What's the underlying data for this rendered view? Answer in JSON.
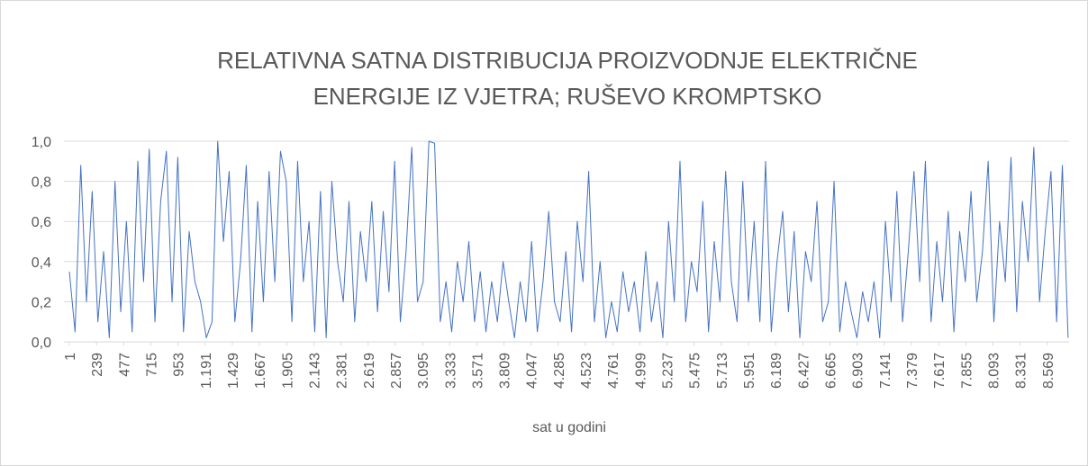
{
  "chart_data": {
    "type": "line",
    "title": [
      "RELATIVNA SATNA DISTRIBUCIJA PROIZVODNJE ELEKTRIČNE",
      "ENERGIJE IZ VJETRA; RUŠEVO KROMPTSKO"
    ],
    "x_label": "sat u godini",
    "color": "#4472c4",
    "grid": true,
    "xlim": [
      1,
      8760
    ],
    "xticks": [
      1,
      239,
      477,
      715,
      953,
      {
        "value": 1191,
        "label": "1.191"
      },
      {
        "value": 1429,
        "label": "1.429"
      },
      {
        "value": 1667,
        "label": "1.667"
      },
      {
        "value": 1905,
        "label": "1.905"
      },
      {
        "value": 2143,
        "label": "2.143"
      },
      {
        "value": 2381,
        "label": "2.381"
      },
      {
        "value": 2619,
        "label": "2.619"
      },
      {
        "value": 2857,
        "label": "2.857"
      },
      {
        "value": 3095,
        "label": "3.095"
      },
      {
        "value": 3333,
        "label": "3.333"
      },
      {
        "value": 3571,
        "label": "3.571"
      },
      {
        "value": 3809,
        "label": "3.809"
      },
      {
        "value": 4047,
        "label": "4.047"
      },
      {
        "value": 4285,
        "label": "4.285"
      },
      {
        "value": 4523,
        "label": "4.523"
      },
      {
        "value": 4761,
        "label": "4.761"
      },
      {
        "value": 4999,
        "label": "4.999"
      },
      {
        "value": 5237,
        "label": "5.237"
      },
      {
        "value": 5475,
        "label": "5.475"
      },
      {
        "value": 5713,
        "label": "5.713"
      },
      {
        "value": 5951,
        "label": "5.951"
      },
      {
        "value": 6189,
        "label": "6.189"
      },
      {
        "value": 6427,
        "label": "6.427"
      },
      {
        "value": 6665,
        "label": "6.665"
      },
      {
        "value": 6903,
        "label": "6.903"
      },
      {
        "value": 7141,
        "label": "7.141"
      },
      {
        "value": 7379,
        "label": "7.379"
      },
      {
        "value": 7617,
        "label": "7.617"
      },
      {
        "value": 7855,
        "label": "7.855"
      },
      {
        "value": 8093,
        "label": "8.093"
      },
      {
        "value": 8331,
        "label": "8.331"
      },
      {
        "value": 8569,
        "label": "8.569"
      }
    ],
    "ylim": [
      0,
      1
    ],
    "yticks": [
      {
        "value": 0,
        "label": "0,0"
      },
      {
        "value": 0.2,
        "label": "0,2"
      },
      {
        "value": 0.4,
        "label": "0,4"
      },
      {
        "value": 0.6,
        "label": "0,6"
      },
      {
        "value": 0.8,
        "label": "0,8"
      },
      {
        "value": 1,
        "label": "1,0"
      }
    ],
    "x": [
      1,
      51,
      101,
      151,
      201,
      251,
      301,
      351,
      401,
      451,
      501,
      551,
      601,
      651,
      701,
      751,
      801,
      851,
      901,
      951,
      1001,
      1051,
      1101,
      1151,
      1201,
      1251,
      1301,
      1351,
      1401,
      1451,
      1501,
      1551,
      1601,
      1651,
      1701,
      1751,
      1801,
      1851,
      1901,
      1951,
      2001,
      2051,
      2101,
      2151,
      2201,
      2251,
      2301,
      2351,
      2401,
      2451,
      2501,
      2551,
      2601,
      2651,
      2701,
      2751,
      2801,
      2851,
      2901,
      2951,
      3001,
      3051,
      3101,
      3151,
      3201,
      3251,
      3301,
      3351,
      3401,
      3451,
      3501,
      3551,
      3601,
      3651,
      3701,
      3751,
      3801,
      3851,
      3901,
      3951,
      4001,
      4051,
      4101,
      4151,
      4201,
      4251,
      4301,
      4351,
      4401,
      4451,
      4501,
      4551,
      4601,
      4651,
      4701,
      4751,
      4801,
      4851,
      4901,
      4951,
      5001,
      5051,
      5101,
      5151,
      5201,
      5251,
      5301,
      5351,
      5401,
      5451,
      5501,
      5551,
      5601,
      5651,
      5701,
      5751,
      5801,
      5851,
      5901,
      5951,
      6001,
      6051,
      6101,
      6151,
      6201,
      6251,
      6301,
      6351,
      6401,
      6451,
      6501,
      6551,
      6601,
      6651,
      6701,
      6751,
      6801,
      6851,
      6901,
      6951,
      7001,
      7051,
      7101,
      7151,
      7201,
      7251,
      7301,
      7351,
      7401,
      7451,
      7501,
      7551,
      7601,
      7651,
      7701,
      7751,
      7801,
      7851,
      7901,
      7951,
      8001,
      8051,
      8101,
      8151,
      8201,
      8251,
      8301,
      8351,
      8401,
      8451,
      8501,
      8551,
      8601,
      8651,
      8701,
      8751
    ],
    "values": [
      0.35,
      0.05,
      0.88,
      0.2,
      0.75,
      0.1,
      0.45,
      0.02,
      0.8,
      0.15,
      0.6,
      0.05,
      0.9,
      0.3,
      0.96,
      0.1,
      0.7,
      0.95,
      0.2,
      0.92,
      0.05,
      0.55,
      0.3,
      0.2,
      0.02,
      0.1,
      1.0,
      0.5,
      0.85,
      0.1,
      0.4,
      0.88,
      0.05,
      0.7,
      0.2,
      0.85,
      0.3,
      0.95,
      0.8,
      0.1,
      0.9,
      0.3,
      0.6,
      0.05,
      0.75,
      0.02,
      0.8,
      0.4,
      0.2,
      0.7,
      0.1,
      0.55,
      0.3,
      0.7,
      0.15,
      0.65,
      0.25,
      0.9,
      0.1,
      0.45,
      0.97,
      0.2,
      0.3,
      1.0,
      0.99,
      0.1,
      0.3,
      0.05,
      0.4,
      0.2,
      0.5,
      0.1,
      0.35,
      0.05,
      0.3,
      0.1,
      0.4,
      0.2,
      0.02,
      0.3,
      0.1,
      0.5,
      0.05,
      0.3,
      0.65,
      0.2,
      0.1,
      0.45,
      0.05,
      0.6,
      0.3,
      0.85,
      0.1,
      0.4,
      0.02,
      0.2,
      0.05,
      0.35,
      0.15,
      0.3,
      0.05,
      0.45,
      0.1,
      0.3,
      0.02,
      0.6,
      0.2,
      0.9,
      0.1,
      0.4,
      0.25,
      0.7,
      0.05,
      0.5,
      0.2,
      0.85,
      0.3,
      0.1,
      0.8,
      0.2,
      0.6,
      0.1,
      0.9,
      0.05,
      0.4,
      0.65,
      0.15,
      0.55,
      0.02,
      0.45,
      0.3,
      0.7,
      0.1,
      0.2,
      0.8,
      0.05,
      0.3,
      0.15,
      0.02,
      0.25,
      0.1,
      0.3,
      0.02,
      0.6,
      0.2,
      0.75,
      0.1,
      0.45,
      0.85,
      0.3,
      0.9,
      0.1,
      0.5,
      0.2,
      0.65,
      0.05,
      0.55,
      0.3,
      0.75,
      0.2,
      0.45,
      0.9,
      0.1,
      0.6,
      0.3,
      0.92,
      0.15,
      0.7,
      0.4,
      0.97,
      0.2,
      0.55,
      0.85,
      0.1,
      0.88,
      0.02
    ]
  }
}
